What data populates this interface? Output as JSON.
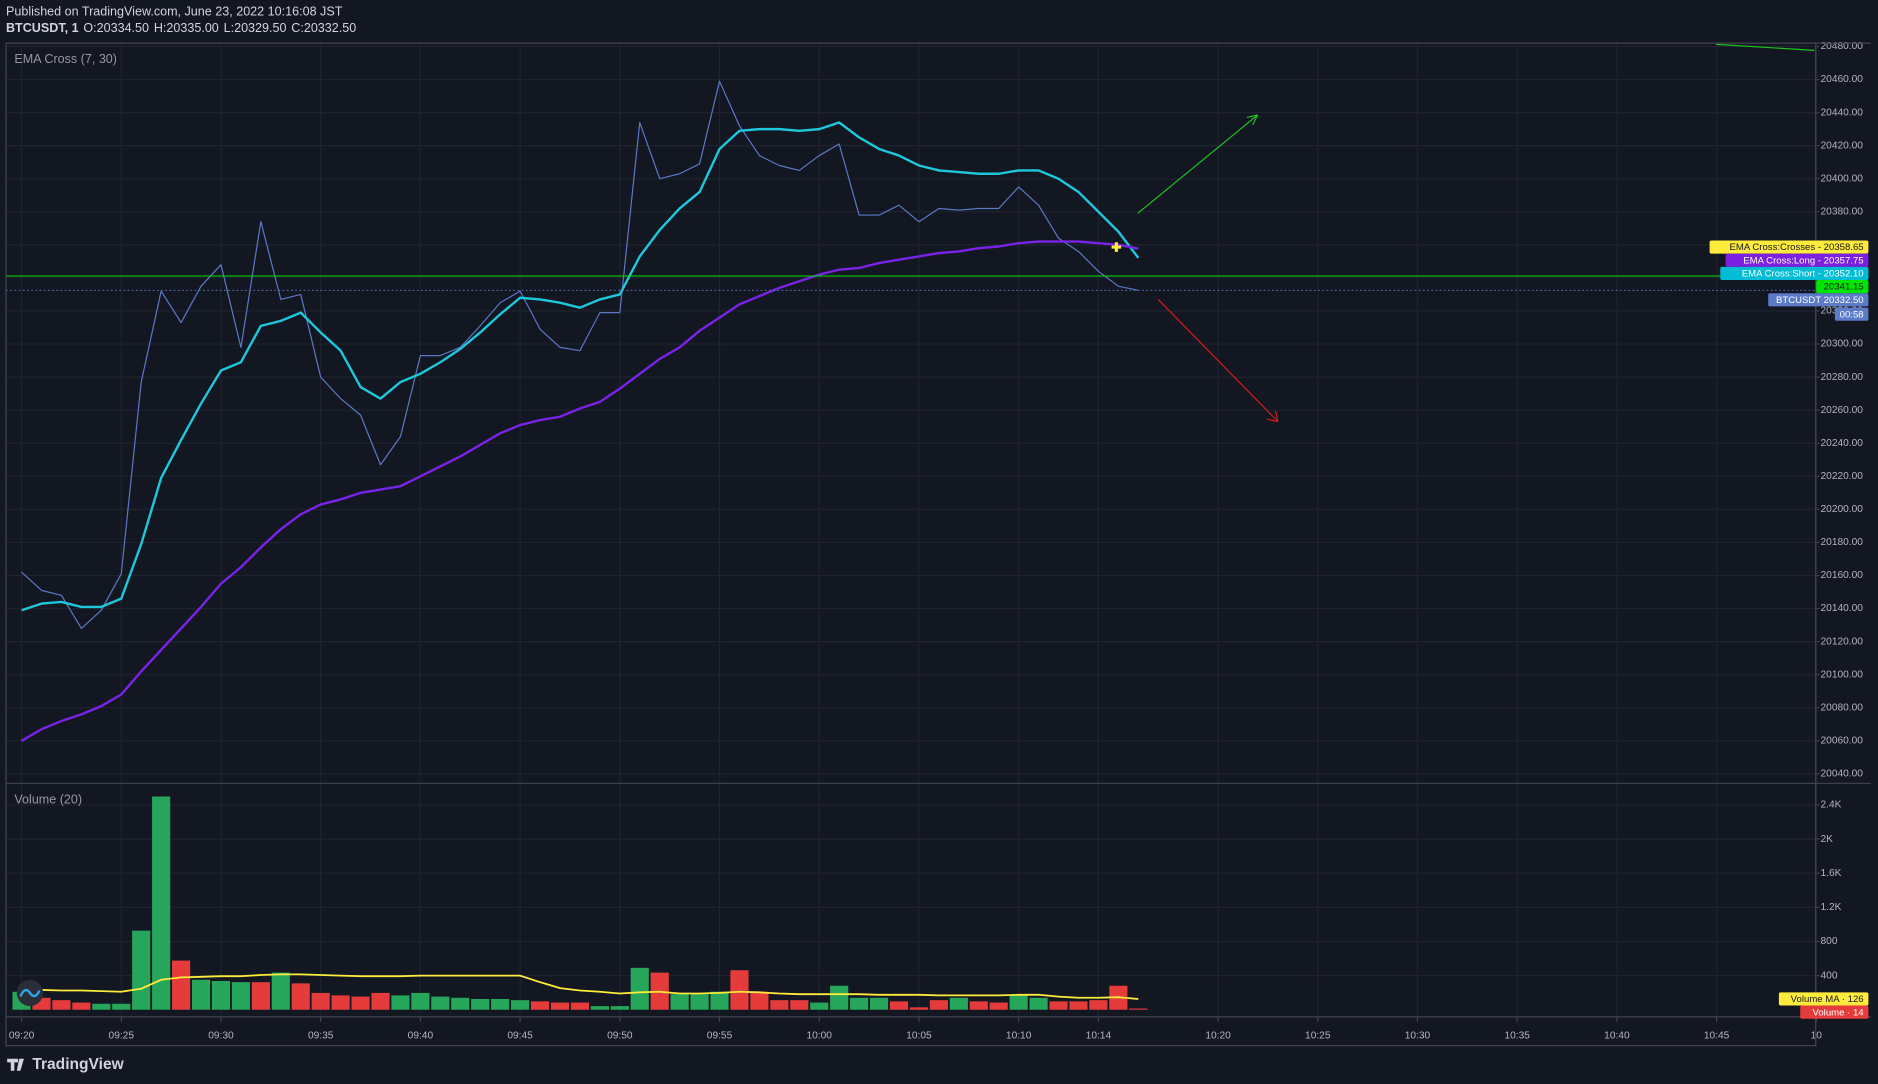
{
  "header": {
    "published": "Published on TradingView.com, June 23, 2022 10:16:08 JST",
    "symbol": "BTCUSDT, 1",
    "ohlc": [
      {
        "key": "O:",
        "value": "20334.50"
      },
      {
        "key": "H:",
        "value": "20335.00"
      },
      {
        "key": "L:",
        "value": "20329.50"
      },
      {
        "key": "C:",
        "value": "20332.50"
      }
    ]
  },
  "footer": {
    "brand": "TradingView"
  },
  "chart_data": [
    {
      "type": "line",
      "title": "EMA Cross (7, 30)",
      "series": [
        {
          "color": "#5b78c6",
          "width": 1,
          "values": [
            20162,
            20151,
            20148,
            20128,
            20139,
            20161,
            20277,
            20332,
            20313,
            20335,
            20348,
            20298,
            20374,
            20327,
            20330,
            20280,
            20267,
            20257,
            20227,
            20244,
            20293,
            20293,
            20298,
            20311,
            20325,
            20332,
            20309,
            20298,
            20296,
            20319,
            20319,
            20434,
            20400,
            20403,
            20409,
            20459,
            20432,
            20414,
            20408,
            20405,
            20414,
            20421,
            20378,
            20378,
            20384,
            20374,
            20382,
            20381,
            20382,
            20382,
            20395,
            20384,
            20364,
            20356,
            20344,
            20335,
            20332.5
          ]
        },
        {
          "color": "#1ec8dc",
          "width": 2,
          "values": [
            20139,
            20143,
            20144,
            20141,
            20141,
            20146,
            20179,
            20219,
            20242,
            20264,
            20284,
            20289,
            20311,
            20314,
            20319,
            20307,
            20296,
            20274,
            20267,
            20277,
            20282,
            20289,
            20297,
            20307,
            20318,
            20328,
            20327,
            20325,
            20322,
            20327,
            20330,
            20353,
            20369,
            20382,
            20392,
            20418,
            20429,
            20430,
            20430,
            20429,
            20430,
            20434,
            20425,
            20418,
            20414,
            20408,
            20405,
            20404,
            20403,
            20403,
            20405,
            20405,
            20400,
            20392,
            20380,
            20368,
            20352.1
          ]
        },
        {
          "color": "#7b22e8",
          "width": 2,
          "values": [
            20060,
            20067,
            20072,
            20076,
            20081,
            20088,
            20102,
            20115,
            20128,
            20141,
            20155,
            20165,
            20177,
            20188,
            20197,
            20203,
            20206,
            20210,
            20212,
            20214,
            20220,
            20226,
            20232,
            20239,
            20246,
            20251,
            20254,
            20256,
            20261,
            20265,
            20273,
            20282,
            20291,
            20298,
            20308,
            20316,
            20324,
            20329,
            20334,
            20338,
            20342,
            20345,
            20346,
            20349,
            20351,
            20353,
            20355,
            20356,
            20358,
            20359,
            20361,
            20362,
            20362,
            20362,
            20361,
            20360,
            20357.75
          ]
        }
      ],
      "ylim": [
        20035,
        20482
      ],
      "yticks": [
        {
          "value": 20040,
          "label": "20040.00"
        },
        {
          "value": 20060,
          "label": "20060.00"
        },
        {
          "value": 20080,
          "label": "20080.00"
        },
        {
          "value": 20100,
          "label": "20100.00"
        },
        {
          "value": 20120,
          "label": "20120.00"
        },
        {
          "value": 20140,
          "label": "20140.00"
        },
        {
          "value": 20160,
          "label": "20160.00"
        },
        {
          "value": 20180,
          "label": "20180.00"
        },
        {
          "value": 20200,
          "label": "20200.00"
        },
        {
          "value": 20220,
          "label": "20220.00"
        },
        {
          "value": 20240,
          "label": "20240.00"
        },
        {
          "value": 20260,
          "label": "20260.00"
        },
        {
          "value": 20280,
          "label": "20280.00"
        },
        {
          "value": 20300,
          "label": "20300.00"
        },
        {
          "value": 20320,
          "label": "20320.00"
        },
        {
          "value": 20340,
          "label": "20340.00"
        },
        {
          "value": 20360,
          "label": "20360.00"
        },
        {
          "value": 20380,
          "label": "20380.00"
        },
        {
          "value": 20400,
          "label": "20400.00"
        },
        {
          "value": 20420,
          "label": "20420.00"
        },
        {
          "value": 20440,
          "label": "20440.00"
        },
        {
          "value": 20460,
          "label": "20460.00"
        },
        {
          "value": 20480,
          "label": "20480.00"
        }
      ],
      "grid": true,
      "price_tags": [
        {
          "text": "EMA Cross:Crosses - 20358.65",
          "value": 20358.65,
          "color": "#ffeb3b",
          "text_color": "#131722"
        },
        {
          "text": "EMA Cross:Long - 20357.75",
          "value": 20357.75,
          "color": "#7b1fe0",
          "text_color": "#ffffff"
        },
        {
          "text": "EMA Cross:Short - 20352.10",
          "value": 20352.1,
          "color": "#00bcd4",
          "text_color": "#ffffff"
        },
        {
          "text": "20341.15",
          "value": 20341.15,
          "color": "#00e600",
          "text_color": "#131722",
          "line": "solid"
        },
        {
          "text": "BTCUSDT  20332.50",
          "value": 20332.5,
          "color": "#5b7ac8",
          "text_color": "#ffffff",
          "line": "dotted"
        }
      ],
      "countdown": "00:58"
    },
    {
      "type": "bar",
      "title": "Volume (20)",
      "categories": [
        "09:20",
        null,
        null,
        null,
        null,
        "09:25",
        null,
        null,
        null,
        null,
        "09:30",
        null,
        null,
        null,
        null,
        "09:35",
        null,
        null,
        null,
        null,
        "09:40",
        null,
        null,
        null,
        null,
        "09:45",
        null,
        null,
        null,
        null,
        "09:50",
        null,
        null,
        null,
        null,
        "09:55",
        null,
        null,
        null,
        null,
        "10:00",
        null,
        null,
        null,
        null,
        "10:05",
        null,
        null,
        null,
        null,
        "10:10",
        null,
        null,
        null,
        "10:14",
        null,
        null,
        null,
        null,
        null,
        "10:20",
        null,
        null,
        null,
        null,
        "10:25",
        null,
        null,
        null,
        null,
        "10:30",
        null,
        null,
        null,
        null,
        "10:35",
        null,
        null,
        null,
        null,
        "10:40",
        null,
        null,
        null,
        null,
        "10:45",
        null,
        null,
        null,
        null,
        "10"
      ],
      "values": [
        210,
        140,
        112,
        84,
        70,
        70,
        927,
        2500,
        576,
        351,
        337,
        323,
        323,
        435,
        309,
        197,
        168,
        154,
        197,
        168,
        197,
        154,
        140,
        126,
        126,
        112,
        98,
        84,
        84,
        42,
        42,
        491,
        435,
        183,
        183,
        211,
        463,
        211,
        112,
        112,
        84,
        281,
        140,
        140,
        98,
        28,
        112,
        140,
        98,
        84,
        168,
        140,
        98,
        98,
        112,
        281,
        14,
        null,
        null,
        null,
        null,
        null,
        null,
        null,
        null,
        null,
        null,
        null,
        null,
        null,
        null,
        null,
        null,
        null,
        null,
        null,
        null,
        null,
        null,
        null,
        null,
        null,
        null,
        null,
        null,
        null,
        null,
        null,
        null,
        null,
        null
      ],
      "colors": [
        "#26a65b",
        "#e53b3b",
        "#e53b3b",
        "#e53b3b",
        "#26a65b",
        "#26a65b",
        "#26a65b",
        "#26a65b",
        "#e53b3b",
        "#26a65b",
        "#26a65b",
        "#26a65b",
        "#e53b3b",
        "#26a65b",
        "#e53b3b",
        "#e53b3b",
        "#e53b3b",
        "#e53b3b",
        "#e53b3b",
        "#26a65b",
        "#26a65b",
        "#26a65b",
        "#26a65b",
        "#26a65b",
        "#26a65b",
        "#26a65b",
        "#e53b3b",
        "#e53b3b",
        "#e53b3b",
        "#26a65b",
        "#26a65b",
        "#26a65b",
        "#e53b3b",
        "#26a65b",
        "#26a65b",
        "#26a65b",
        "#e53b3b",
        "#e53b3b",
        "#e53b3b",
        "#e53b3b",
        "#26a65b",
        "#26a65b",
        "#26a65b",
        "#26a65b",
        "#e53b3b",
        "#e53b3b",
        "#e53b3b",
        "#26a65b",
        "#e53b3b",
        "#e53b3b",
        "#26a65b",
        "#26a65b",
        "#e53b3b",
        "#e53b3b",
        "#e53b3b",
        "#e53b3b",
        "#e53b3b",
        null,
        null,
        null,
        null,
        null,
        null,
        null,
        null,
        null,
        null,
        null,
        null,
        null,
        null,
        null,
        null,
        null,
        null,
        null,
        null,
        null,
        null,
        null,
        null,
        null,
        null,
        null,
        null,
        null,
        null,
        null,
        null,
        null,
        null
      ],
      "ma_color": "#ffeb3b",
      "ma_values": [
        239,
        232,
        225,
        225,
        218,
        211,
        246,
        351,
        379,
        386,
        393,
        393,
        407,
        414,
        414,
        407,
        400,
        393,
        393,
        393,
        400,
        400,
        400,
        400,
        400,
        400,
        323,
        253,
        225,
        211,
        190,
        204,
        211,
        190,
        190,
        197,
        211,
        204,
        190,
        182,
        182,
        182,
        182,
        175,
        175,
        175,
        168,
        168,
        168,
        168,
        175,
        175,
        154,
        140,
        140,
        147,
        126,
        null,
        null,
        null,
        null,
        null,
        null,
        null,
        null,
        null,
        null,
        null,
        null,
        null,
        null,
        null,
        null,
        null,
        null,
        null,
        null,
        null,
        null,
        null,
        null,
        null,
        null,
        null,
        null,
        null,
        null,
        null,
        null,
        null,
        null
      ],
      "ylim": [
        -70,
        2640
      ],
      "yticks": [
        400,
        800,
        {
          "value": 1200,
          "label": "1.2K"
        },
        {
          "value": 1600,
          "label": "1.6K"
        },
        {
          "value": 2000,
          "label": "2K"
        },
        {
          "value": 2400,
          "label": "2.4K"
        }
      ],
      "grid": true,
      "price_tags": [
        {
          "text": "Volume MA · 126",
          "value": 126,
          "color": "#ffeb3b",
          "text_color": "#131722"
        },
        {
          "text": "Volume · 14",
          "value": 14,
          "color": "#e53b3b",
          "text_color": "#ffffff"
        }
      ]
    }
  ]
}
